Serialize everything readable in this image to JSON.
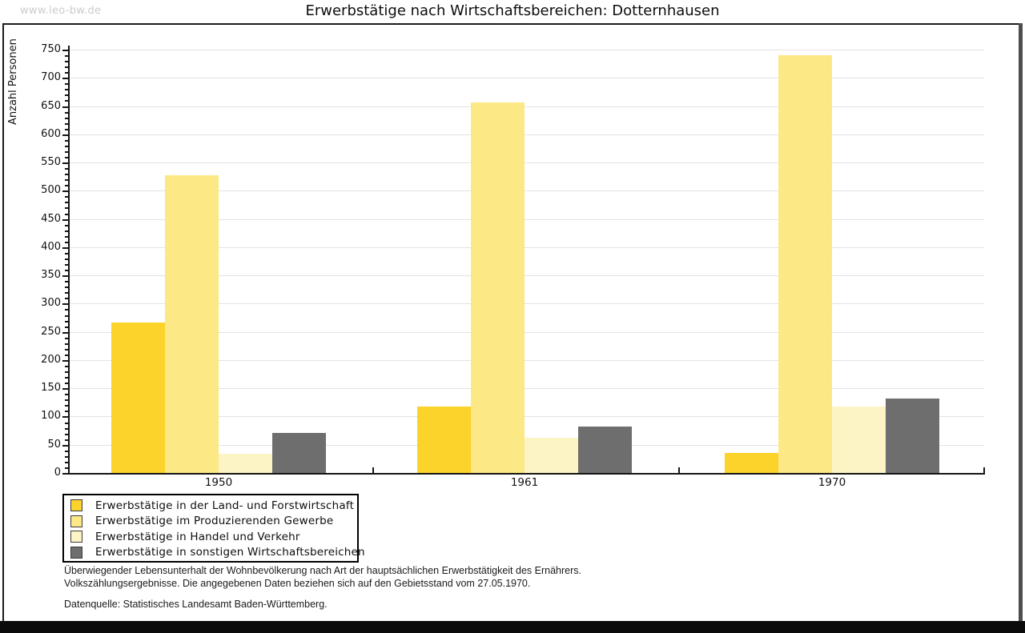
{
  "watermark": "www.leo-bw.de",
  "header": {
    "title": "Erwerbstätige nach Wirtschaftsbereichen: Dotternhausen"
  },
  "chart_data": {
    "type": "bar",
    "title": "Erwerbstätige nach Wirtschaftsbereichen: Dotternhausen",
    "categories": [
      "1950",
      "1961",
      "1970"
    ],
    "series": [
      {
        "name": "Erwerbstätige in der Land- und Forstwirtschaft",
        "color": "#FCD32B",
        "values": [
          266,
          118,
          36
        ]
      },
      {
        "name": "Erwerbstätige im Produzierenden Gewerbe",
        "color": "#FCE885",
        "values": [
          527,
          657,
          740
        ]
      },
      {
        "name": "Erwerbstätige in Handel und Verkehr",
        "color": "#FCF4C4",
        "values": [
          34,
          63,
          117
        ]
      },
      {
        "name": "Erwerbstätige in sonstigen Wirtschaftsbereichen",
        "color": "#6E6E6E",
        "values": [
          71,
          82,
          132
        ]
      }
    ],
    "xlabel": "",
    "ylabel": "Anzahl Personen",
    "ylim": [
      0,
      750
    ],
    "ytick_step": 50,
    "ytick_minor_step": 10,
    "grid": true,
    "legend_position": "bottom-left"
  },
  "footnotes": {
    "line1": "Überwiegender Lebensunterhalt der Wohnbevölkerung nach Art der hauptsächlichen Erwerbstätigkeit des Ernährers.",
    "line2": "Volkszählungsergebnisse. Die angegebenen Daten beziehen sich auf den Gebietsstand vom 27.05.1970.",
    "datasource": "Datenquelle: Statistisches Landesamt Baden-Württemberg."
  }
}
